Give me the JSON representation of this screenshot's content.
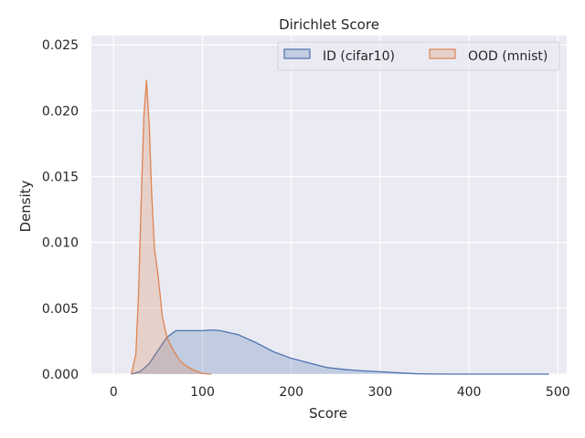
{
  "chart_data": {
    "type": "area",
    "title": "Dirichlet Score",
    "xlabel": "Score",
    "ylabel": "Density",
    "xlim": [
      -25,
      510
    ],
    "ylim": [
      0,
      0.0257
    ],
    "xticks": [
      0,
      100,
      200,
      300,
      400,
      500
    ],
    "yticks": [
      0,
      0.005,
      0.01,
      0.015,
      0.02,
      0.025
    ],
    "xtick_labels": [
      "0",
      "100",
      "200",
      "300",
      "400",
      "500"
    ],
    "ytick_labels": [
      "0.000",
      "0.005",
      "0.010",
      "0.015",
      "0.020",
      "0.025"
    ],
    "grid": true,
    "legend_position": "top-right",
    "series": [
      {
        "name": "ID (cifar10)",
        "color": "#4c72b0",
        "x": [
          20,
          30,
          40,
          50,
          60,
          70,
          80,
          90,
          100,
          110,
          120,
          140,
          160,
          180,
          200,
          220,
          240,
          260,
          280,
          300,
          320,
          340,
          360,
          400,
          450,
          490
        ],
        "y": [
          0.0,
          0.0002,
          0.0008,
          0.0018,
          0.0028,
          0.0033,
          0.0033,
          0.0033,
          0.0033,
          0.00335,
          0.0033,
          0.003,
          0.0024,
          0.0017,
          0.0012,
          0.00085,
          0.0005,
          0.00035,
          0.00025,
          0.00018,
          0.0001,
          3e-05,
          1e-05,
          0.0,
          0.0,
          0.0
        ]
      },
      {
        "name": "OOD (mnist)",
        "color": "#dd8452",
        "x": [
          20,
          25,
          28,
          31,
          34,
          37,
          40,
          43,
          46,
          50,
          55,
          60,
          65,
          70,
          75,
          80,
          90,
          100,
          110
        ],
        "y": [
          0.0,
          0.0015,
          0.006,
          0.013,
          0.0195,
          0.0223,
          0.019,
          0.0135,
          0.0095,
          0.0075,
          0.0043,
          0.0028,
          0.0021,
          0.0015,
          0.001,
          0.0007,
          0.0003,
          5e-05,
          0.0
        ]
      }
    ]
  }
}
